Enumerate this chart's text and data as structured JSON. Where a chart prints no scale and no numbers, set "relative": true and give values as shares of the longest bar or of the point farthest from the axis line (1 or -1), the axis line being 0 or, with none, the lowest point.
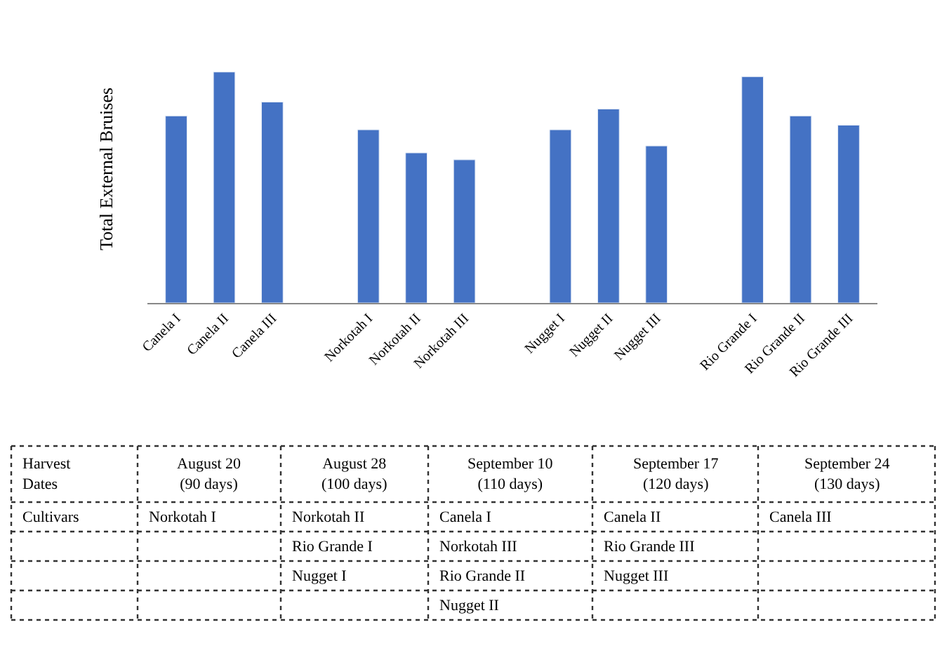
{
  "chart_data": {
    "type": "bar",
    "ylabel": "Total External Bruises",
    "relative": true,
    "categories": [
      "Canela I",
      "Canela II",
      "Canela III",
      null,
      "Norkotah I",
      "Norkotah II",
      "Norkotah III",
      null,
      "Nugget I",
      "Nugget II",
      "Nugget III",
      null,
      "Rio Grande I",
      "Rio Grande II",
      "Rio Grande III"
    ],
    "values": [
      0.81,
      1,
      0.87,
      null,
      0.75,
      0.65,
      0.62,
      null,
      0.75,
      0.84,
      0.68,
      null,
      0.98,
      0.81,
      0.77
    ],
    "color": "#4472c4",
    "annotations": [
      "Harvest Dates",
      "August 20 (90 days)",
      "August 28 (100 days)",
      "September 10 (110 days)",
      "September 17 (120 days)",
      "September 24 (130 days)",
      "Cultivars",
      "Norkotah I",
      "Norkotah II\nRio Grande I\nNugget I",
      "Canela I\nNorkotah III\nRio Grande II\nNugget II",
      "Canela II\nRio Grande III\nNugget III",
      "Canela III"
    ]
  }
}
